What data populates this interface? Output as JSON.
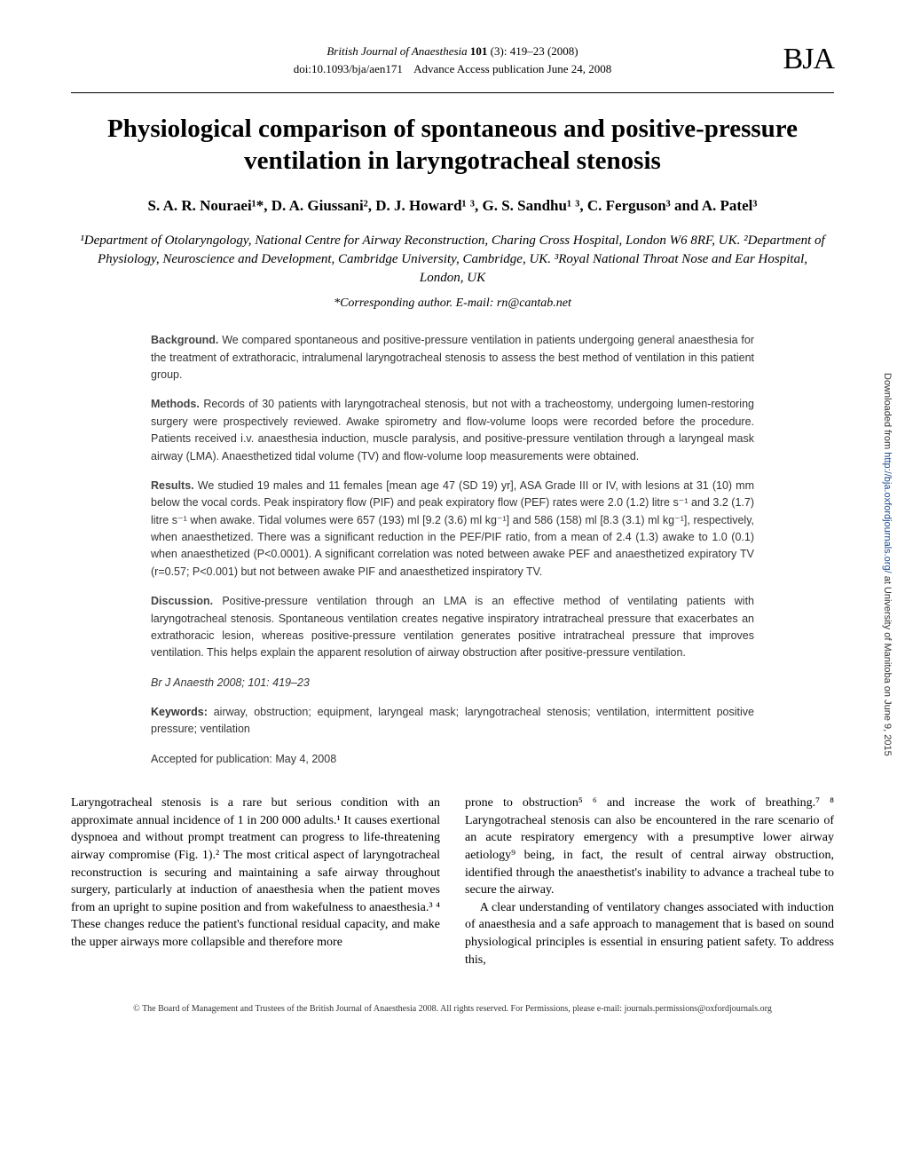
{
  "header": {
    "journal": "British Journal of Anaesthesia",
    "volume": "101",
    "issue": "(3)",
    "pages": "419–23",
    "year": "(2008)",
    "doi": "doi:10.1093/bja/aen171",
    "advance": "Advance Access publication June 24, 2008",
    "logo": "BJA"
  },
  "title": "Physiological comparison of spontaneous and positive-pressure ventilation in laryngotracheal stenosis",
  "authors": "S. A. R. Nouraei¹*, D. A. Giussani², D. J. Howard¹ ³, G. S. Sandhu¹ ³, C. Ferguson³ and A. Patel³",
  "affiliations": "¹Department of Otolaryngology, National Centre for Airway Reconstruction, Charing Cross Hospital, London W6 8RF, UK. ²Department of Physiology, Neuroscience and Development, Cambridge University, Cambridge, UK. ³Royal National Throat Nose and Ear Hospital, London, UK",
  "corresponding": "*Corresponding author. E-mail: rn@cantab.net",
  "abstract": {
    "background_label": "Background.",
    "background": " We compared spontaneous and positive-pressure ventilation in patients undergoing general anaesthesia for the treatment of extrathoracic, intralumenal laryngotracheal stenosis to assess the best method of ventilation in this patient group.",
    "methods_label": "Methods.",
    "methods": " Records of 30 patients with laryngotracheal stenosis, but not with a tracheostomy, undergoing lumen-restoring surgery were prospectively reviewed. Awake spirometry and flow-volume loops were recorded before the procedure. Patients received i.v. anaesthesia induction, muscle paralysis, and positive-pressure ventilation through a laryngeal mask airway (LMA). Anaesthetized tidal volume (TV) and flow-volume loop measurements were obtained.",
    "results_label": "Results.",
    "results": " We studied 19 males and 11 females [mean age 47 (SD 19) yr], ASA Grade III or IV, with lesions at 31 (10) mm below the vocal cords. Peak inspiratory flow (PIF) and peak expiratory flow (PEF) rates were 2.0 (1.2) litre s⁻¹ and 3.2 (1.7) litre s⁻¹ when awake. Tidal volumes were 657 (193) ml [9.2 (3.6) ml kg⁻¹] and 586 (158) ml [8.3 (3.1) ml kg⁻¹], respectively, when anaesthetized. There was a significant reduction in the PEF/PIF ratio, from a mean of 2.4 (1.3) awake to 1.0 (0.1) when anaesthetized (P<0.0001). A significant correlation was noted between awake PEF and anaesthetized expiratory TV (r=0.57; P<0.001) but not between awake PIF and anaesthetized inspiratory TV.",
    "discussion_label": "Discussion.",
    "discussion": " Positive-pressure ventilation through an LMA is an effective method of ventilating patients with laryngotracheal stenosis. Spontaneous ventilation creates negative inspiratory intratracheal pressure that exacerbates an extrathoracic lesion, whereas positive-pressure ventilation generates positive intratracheal pressure that improves ventilation. This helps explain the apparent resolution of airway obstruction after positive-pressure ventilation.",
    "citation": "Br J Anaesth 2008; 101: 419–23",
    "keywords_label": "Keywords:",
    "keywords": " airway, obstruction; equipment, laryngeal mask; laryngotracheal stenosis; ventilation, intermittent positive pressure; ventilation",
    "accepted": "Accepted for publication: May 4, 2008"
  },
  "body": {
    "col1": "Laryngotracheal stenosis is a rare but serious condition with an approximate annual incidence of 1 in 200 000 adults.¹ It causes exertional dyspnoea and without prompt treatment can progress to life-threatening airway compromise (Fig. 1).² The most critical aspect of laryngotracheal reconstruction is securing and maintaining a safe airway throughout surgery, particularly at induction of anaesthesia when the patient moves from an upright to supine position and from wakefulness to anaesthesia.³ ⁴ These changes reduce the patient's functional residual capacity, and make the upper airways more collapsible and therefore more",
    "col2_p1": "prone to obstruction⁵ ⁶ and increase the work of breathing.⁷ ⁸ Laryngotracheal stenosis can also be encountered in the rare scenario of an acute respiratory emergency with a presumptive lower airway aetiology⁹ being, in fact, the result of central airway obstruction, identified through the anaesthetist's inability to advance a tracheal tube to secure the airway.",
    "col2_p2": "A clear understanding of ventilatory changes associated with induction of anaesthesia and a safe approach to management that is based on sound physiological principles is essential in ensuring patient safety. To address this,"
  },
  "footer": "© The Board of Management and Trustees of the British Journal of Anaesthesia 2008. All rights reserved. For Permissions, please e-mail: journals.permissions@oxfordjournals.org",
  "sidebar": {
    "prefix": "Downloaded from ",
    "link": "http://bja.oxfordjournals.org/",
    "suffix": " at University of Manitoba on June 9, 2015"
  }
}
